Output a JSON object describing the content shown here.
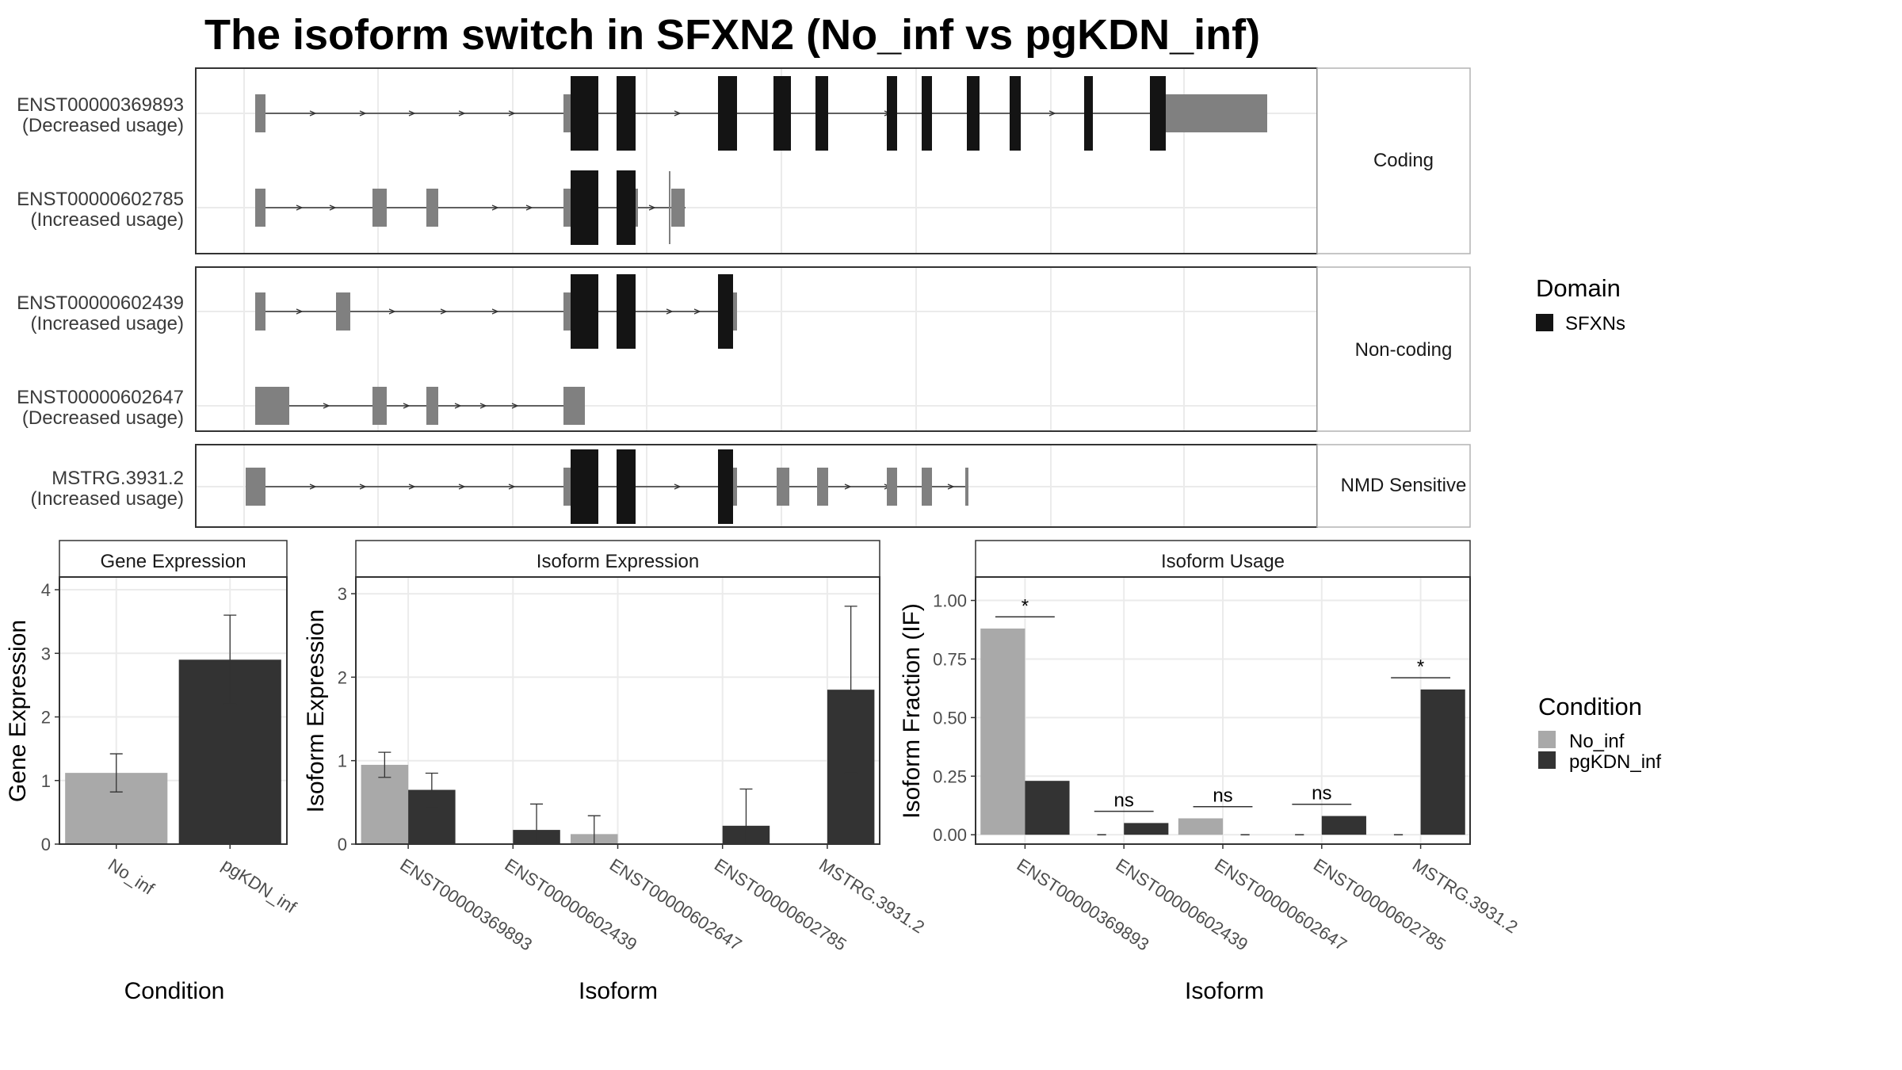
{
  "title": "The isoform switch in SFXN2 (No_inf vs pgKDN_inf)",
  "colors": {
    "no_inf": "#a9a9a9",
    "pgkdn_inf": "#333333",
    "utr": "#808080",
    "domain": "#141414",
    "grid": "#ebebeb",
    "frame": "#333333"
  },
  "structure": {
    "groups": [
      {
        "label": "Coding",
        "isoforms": [
          {
            "id": "ENST00000369893",
            "usage": "(Decreased usage)"
          },
          {
            "id": "ENST00000602785",
            "usage": "(Increased usage)"
          }
        ]
      },
      {
        "label": "Non-coding",
        "isoforms": [
          {
            "id": "ENST00000602439",
            "usage": "(Increased usage)"
          },
          {
            "id": "ENST00000602647",
            "usage": "(Decreased usage)"
          }
        ]
      },
      {
        "label": "NMD Sensitive",
        "isoforms": [
          {
            "id": "MSTRG.3931.2",
            "usage": "(Increased usage)"
          }
        ]
      }
    ]
  },
  "legend_domain": {
    "title": "Domain",
    "items": [
      "SFXNs"
    ]
  },
  "legend_condition": {
    "title": "Condition",
    "items": [
      "No_inf",
      "pgKDN_inf"
    ]
  },
  "chart_data": [
    {
      "type": "bar",
      "title": "Gene Expression",
      "xlabel": "Condition",
      "ylabel": "Gene Expression",
      "ylim": [
        0,
        4.2
      ],
      "yticks": [
        0,
        1,
        2,
        3,
        4
      ],
      "categories": [
        "No_inf",
        "pgKDN_inf"
      ],
      "values": [
        1.12,
        2.9
      ],
      "errors": [
        [
          0.82,
          1.42
        ],
        [
          2.2,
          3.6
        ]
      ]
    },
    {
      "type": "bar",
      "title": "Isoform Expression",
      "xlabel": "Isoform",
      "ylabel": "Isoform Expression",
      "ylim": [
        0,
        3.2
      ],
      "yticks": [
        0,
        1,
        2,
        3
      ],
      "categories": [
        "ENST00000369893",
        "ENST00000602439",
        "ENST00000602647",
        "ENST00000602785",
        "MSTRG.3931.2"
      ],
      "series": [
        {
          "name": "No_inf",
          "values": [
            0.95,
            0.0,
            0.12,
            0.0,
            0.0
          ],
          "errors": [
            [
              0.8,
              1.1
            ],
            [
              0,
              0
            ],
            [
              0.0,
              0.34
            ],
            [
              0,
              0
            ],
            [
              0,
              0
            ]
          ]
        },
        {
          "name": "pgKDN_inf",
          "values": [
            0.65,
            0.17,
            0.0,
            0.22,
            1.85
          ],
          "errors": [
            [
              0.45,
              0.85
            ],
            [
              0.0,
              0.48
            ],
            [
              0,
              0
            ],
            [
              0.0,
              0.66
            ],
            [
              0.85,
              2.85
            ]
          ]
        }
      ]
    },
    {
      "type": "bar",
      "title": "Isoform Usage",
      "xlabel": "Isoform",
      "ylabel": "Isoform Fraction (IF)",
      "ylim": [
        -0.04,
        1.1
      ],
      "yticks": [
        "0.00",
        "0.25",
        "0.50",
        "0.75",
        "1.00"
      ],
      "categories": [
        "ENST00000369893",
        "ENST00000602439",
        "ENST00000602647",
        "ENST00000602785",
        "MSTRG.3931.2"
      ],
      "series": [
        {
          "name": "No_inf",
          "values": [
            0.88,
            0.0,
            0.07,
            0.0,
            0.0
          ]
        },
        {
          "name": "pgKDN_inf",
          "values": [
            0.23,
            0.05,
            0.0,
            0.08,
            0.62
          ]
        }
      ],
      "significance": [
        "*",
        "ns",
        "ns",
        "ns",
        "*"
      ],
      "sig_levels": [
        0.93,
        0.1,
        0.12,
        0.13,
        0.67
      ]
    }
  ]
}
